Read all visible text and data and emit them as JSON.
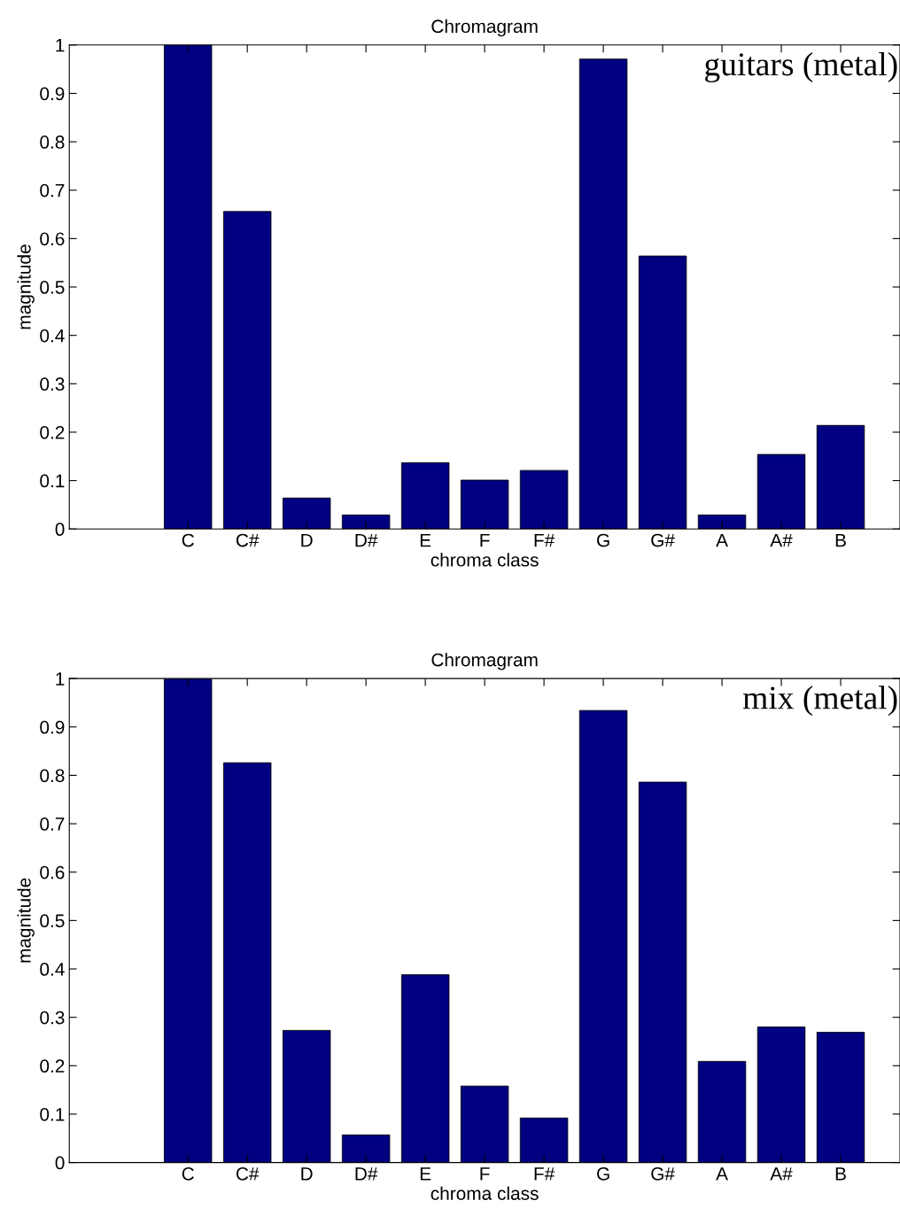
{
  "chart_data": [
    {
      "type": "bar",
      "title": "Chromagram",
      "xlabel": "chroma class",
      "ylabel": "magnitude",
      "categories": [
        null,
        "C",
        "C#",
        "D",
        "D#",
        "E",
        "F",
        "F#",
        "G",
        "G#",
        "A",
        "A#",
        "B"
      ],
      "values": [
        null,
        1.0,
        0.656,
        0.064,
        0.029,
        0.137,
        0.101,
        0.121,
        0.971,
        0.564,
        0.029,
        0.154,
        0.214
      ],
      "color": "#000080",
      "ylim": [
        0,
        1
      ],
      "yticks": [
        0,
        0.1,
        0.2,
        0.3,
        0.4,
        0.5,
        0.6,
        0.7,
        0.8,
        0.9,
        1
      ],
      "grid": false,
      "legend": false,
      "annotations": [
        "guitars (metal)"
      ]
    },
    {
      "type": "bar",
      "title": "Chromagram",
      "xlabel": "chroma class",
      "ylabel": "magnitude",
      "categories": [
        null,
        "C",
        "C#",
        "D",
        "D#",
        "E",
        "F",
        "F#",
        "G",
        "G#",
        "A",
        "A#",
        "B"
      ],
      "values": [
        null,
        1.0,
        0.826,
        0.273,
        0.057,
        0.388,
        0.158,
        0.092,
        0.934,
        0.786,
        0.209,
        0.28,
        0.269
      ],
      "color": "#000080",
      "ylim": [
        0,
        1
      ],
      "yticks": [
        0,
        0.1,
        0.2,
        0.3,
        0.4,
        0.5,
        0.6,
        0.7,
        0.8,
        0.9,
        1
      ],
      "grid": false,
      "legend": false,
      "annotations": [
        "mix (metal)"
      ]
    }
  ]
}
